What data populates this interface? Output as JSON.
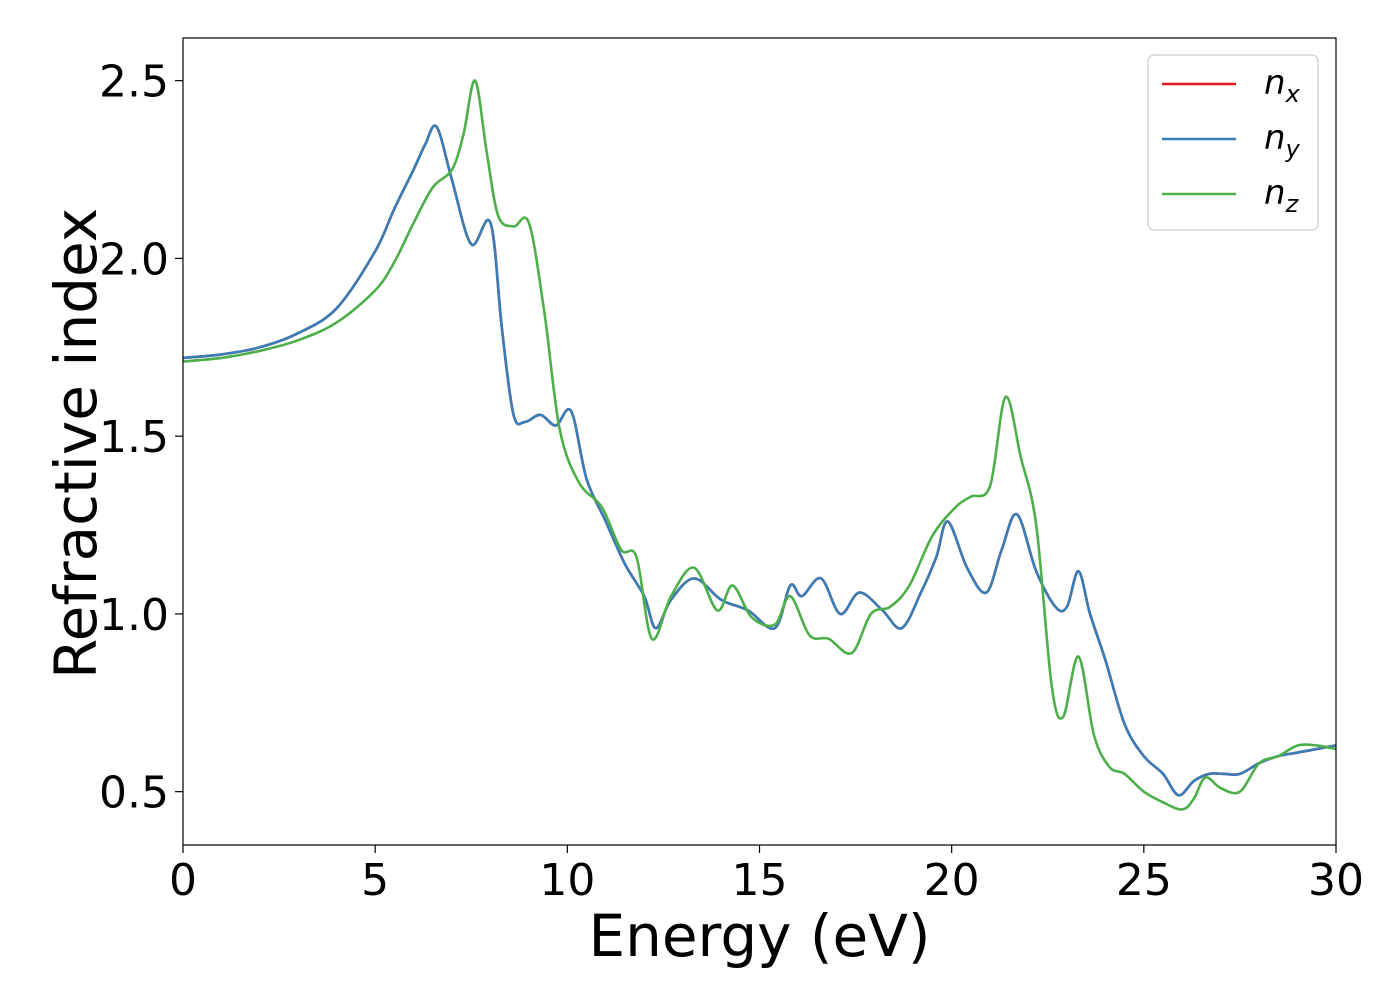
{
  "chart_data": {
    "type": "line",
    "title": "",
    "xlabel": "Energy (eV)",
    "ylabel": "Refractive index",
    "xlim": [
      0,
      30
    ],
    "ylim": [
      0.35,
      2.62
    ],
    "xticks": [
      0,
      5,
      10,
      15,
      20,
      25,
      30
    ],
    "xtick_labels": [
      "0",
      "5",
      "10",
      "15",
      "20",
      "25",
      "30"
    ],
    "yticks": [
      0.5,
      1.0,
      1.5,
      2.0,
      2.5
    ],
    "ytick_labels": [
      "0.5",
      "1.0",
      "1.5",
      "2.0",
      "2.5"
    ],
    "grid": false,
    "legend_position": "top-right",
    "legend": [
      {
        "base": "n",
        "sub": "x",
        "color": "#e41a1c"
      },
      {
        "base": "n",
        "sub": "y",
        "color": "#377eb8"
      },
      {
        "base": "n",
        "sub": "z",
        "color": "#4daf4a"
      }
    ],
    "series": [
      {
        "name": "n_x",
        "color": "#e41a1c",
        "x": [
          0,
          1,
          2,
          3,
          4,
          5,
          5.5,
          6,
          6.3,
          6.6,
          7,
          7.5,
          8,
          8.3,
          8.6,
          8.9,
          9.3,
          9.7,
          10.1,
          10.5,
          11,
          11.5,
          12,
          12.3,
          12.7,
          13.3,
          14,
          14.7,
          15.4,
          15.8,
          16.1,
          16.6,
          17.1,
          17.6,
          18.2,
          18.7,
          19.2,
          19.6,
          19.9,
          20.4,
          20.9,
          21.3,
          21.7,
          22.2,
          22.7,
          23,
          23.3,
          23.6,
          24,
          24.5,
          25,
          25.5,
          25.9,
          26.3,
          26.7,
          27.1,
          27.5,
          28,
          28.5,
          29,
          29.5,
          30
        ],
        "y": [
          1.72,
          1.73,
          1.75,
          1.79,
          1.86,
          2.02,
          2.14,
          2.25,
          2.32,
          2.37,
          2.22,
          2.04,
          2.1,
          1.8,
          1.56,
          1.54,
          1.56,
          1.53,
          1.57,
          1.38,
          1.26,
          1.14,
          1.05,
          0.96,
          1.04,
          1.1,
          1.04,
          1.01,
          0.96,
          1.08,
          1.05,
          1.1,
          1.0,
          1.06,
          1.01,
          0.96,
          1.06,
          1.16,
          1.26,
          1.13,
          1.06,
          1.18,
          1.28,
          1.12,
          1.02,
          1.02,
          1.12,
          1.0,
          0.87,
          0.69,
          0.6,
          0.55,
          0.49,
          0.53,
          0.55,
          0.55,
          0.55,
          0.58,
          0.6,
          0.61,
          0.62,
          0.63
        ]
      },
      {
        "name": "n_y",
        "color": "#377eb8",
        "x": [
          0,
          1,
          2,
          3,
          4,
          5,
          5.5,
          6,
          6.3,
          6.6,
          7,
          7.5,
          8,
          8.3,
          8.6,
          8.9,
          9.3,
          9.7,
          10.1,
          10.5,
          11,
          11.5,
          12,
          12.3,
          12.7,
          13.3,
          14,
          14.7,
          15.4,
          15.8,
          16.1,
          16.6,
          17.1,
          17.6,
          18.2,
          18.7,
          19.2,
          19.6,
          19.9,
          20.4,
          20.9,
          21.3,
          21.7,
          22.2,
          22.7,
          23,
          23.3,
          23.6,
          24,
          24.5,
          25,
          25.5,
          25.9,
          26.3,
          26.7,
          27.1,
          27.5,
          28,
          28.5,
          29,
          29.5,
          30
        ],
        "y": [
          1.72,
          1.73,
          1.75,
          1.79,
          1.86,
          2.02,
          2.14,
          2.25,
          2.32,
          2.37,
          2.22,
          2.04,
          2.1,
          1.8,
          1.56,
          1.54,
          1.56,
          1.53,
          1.57,
          1.38,
          1.26,
          1.14,
          1.05,
          0.96,
          1.04,
          1.1,
          1.04,
          1.01,
          0.96,
          1.08,
          1.05,
          1.1,
          1.0,
          1.06,
          1.01,
          0.96,
          1.06,
          1.16,
          1.26,
          1.13,
          1.06,
          1.18,
          1.28,
          1.12,
          1.02,
          1.02,
          1.12,
          1.0,
          0.87,
          0.69,
          0.6,
          0.55,
          0.49,
          0.53,
          0.55,
          0.55,
          0.55,
          0.58,
          0.6,
          0.61,
          0.62,
          0.63
        ]
      },
      {
        "name": "n_z",
        "color": "#4daf4a",
        "x": [
          0,
          1,
          2,
          3,
          4,
          5,
          5.5,
          6,
          6.5,
          7,
          7.3,
          7.6,
          7.9,
          8.2,
          8.6,
          9,
          9.4,
          9.8,
          10.3,
          10.9,
          11.4,
          11.8,
          12.2,
          12.7,
          13.3,
          13.9,
          14.3,
          14.8,
          15.4,
          15.8,
          16.3,
          16.8,
          17.4,
          17.9,
          18.4,
          18.9,
          19.5,
          20.1,
          20.5,
          21,
          21.4,
          21.8,
          22.2,
          22.6,
          22.9,
          23.3,
          23.7,
          24.1,
          24.5,
          25,
          25.5,
          26,
          26.3,
          26.6,
          27,
          27.5,
          28,
          28.5,
          29,
          29.5,
          30
        ],
        "y": [
          1.71,
          1.72,
          1.74,
          1.77,
          1.82,
          1.91,
          1.99,
          2.1,
          2.2,
          2.25,
          2.35,
          2.5,
          2.3,
          2.12,
          2.09,
          2.1,
          1.85,
          1.52,
          1.37,
          1.3,
          1.18,
          1.16,
          0.93,
          1.05,
          1.13,
          1.01,
          1.08,
          0.99,
          0.97,
          1.05,
          0.94,
          0.93,
          0.89,
          1.0,
          1.02,
          1.08,
          1.22,
          1.3,
          1.33,
          1.36,
          1.61,
          1.44,
          1.25,
          0.8,
          0.71,
          0.88,
          0.66,
          0.57,
          0.55,
          0.5,
          0.47,
          0.45,
          0.48,
          0.54,
          0.51,
          0.5,
          0.58,
          0.6,
          0.63,
          0.63,
          0.62
        ]
      }
    ]
  }
}
